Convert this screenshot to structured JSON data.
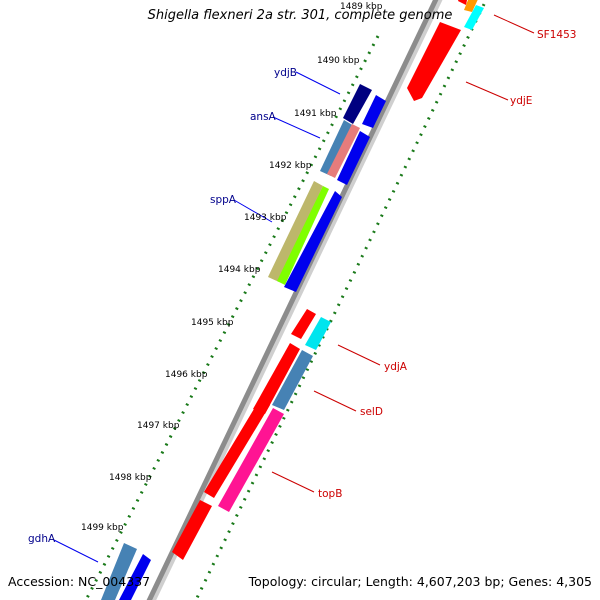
{
  "title": "Shigella flexneri 2a str. 301, complete genome",
  "footer": {
    "accession": "Accession: NC_004337",
    "stats": "Topology: circular; Length: 4,607,203 bp; Genes: 4,305"
  },
  "colors": {
    "backbone": "#8c8c8c",
    "tick": "#1a7a1a",
    "forward_label": "#00008b",
    "reverse_label": "#cc0000"
  },
  "ticks": [
    "1489 kbp",
    "1490 kbp",
    "1491 kbp",
    "1492 kbp",
    "1493 kbp",
    "1494 kbp",
    "1495 kbp",
    "1496 kbp",
    "1497 kbp",
    "1498 kbp",
    "1499 kbp"
  ],
  "gene_labels": [
    {
      "name": "ydjB",
      "strand": "forward"
    },
    {
      "name": "ansA",
      "strand": "forward"
    },
    {
      "name": "sppA",
      "strand": "forward"
    },
    {
      "name": "gdhA",
      "strand": "forward"
    },
    {
      "name": "SF1453",
      "strand": "reverse"
    },
    {
      "name": "ydjE",
      "strand": "reverse"
    },
    {
      "name": "ydjA",
      "strand": "reverse"
    },
    {
      "name": "selD",
      "strand": "reverse"
    },
    {
      "name": "topB",
      "strand": "reverse"
    }
  ]
}
